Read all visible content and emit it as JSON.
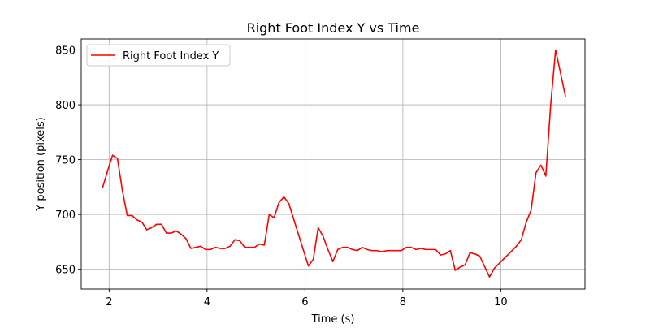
{
  "chart_data": {
    "type": "line",
    "title": "Right Foot Index Y vs Time",
    "xlabel": "Time (s)",
    "ylabel": "Y position (pixels)",
    "xlim": [
      1.43,
      11.72
    ],
    "ylim": [
      632,
      860
    ],
    "xticks": [
      2,
      4,
      6,
      8,
      10
    ],
    "yticks": [
      650,
      700,
      750,
      800,
      850
    ],
    "grid": true,
    "legend": "top-left",
    "series": [
      {
        "name": "Right Foot Index Y",
        "color": "#ff0000",
        "points": [
          [
            1.87,
            725
          ],
          [
            1.97,
            740
          ],
          [
            2.07,
            754
          ],
          [
            2.17,
            751
          ],
          [
            2.27,
            722
          ],
          [
            2.37,
            699
          ],
          [
            2.47,
            699
          ],
          [
            2.57,
            695
          ],
          [
            2.67,
            693
          ],
          [
            2.77,
            686
          ],
          [
            2.87,
            688
          ],
          [
            2.97,
            691
          ],
          [
            3.07,
            691
          ],
          [
            3.17,
            683
          ],
          [
            3.27,
            683
          ],
          [
            3.37,
            685
          ],
          [
            3.47,
            682
          ],
          [
            3.57,
            678
          ],
          [
            3.67,
            669
          ],
          [
            3.77,
            670
          ],
          [
            3.87,
            671
          ],
          [
            3.97,
            668
          ],
          [
            4.07,
            668
          ],
          [
            4.17,
            670
          ],
          [
            4.27,
            669
          ],
          [
            4.37,
            669
          ],
          [
            4.47,
            671
          ],
          [
            4.57,
            677
          ],
          [
            4.67,
            676
          ],
          [
            4.77,
            670
          ],
          [
            4.87,
            670
          ],
          [
            4.97,
            670
          ],
          [
            5.07,
            673
          ],
          [
            5.17,
            672
          ],
          [
            5.27,
            700
          ],
          [
            5.37,
            697
          ],
          [
            5.47,
            711
          ],
          [
            5.57,
            716
          ],
          [
            5.67,
            710
          ],
          [
            6.07,
            653
          ],
          [
            6.17,
            659
          ],
          [
            6.27,
            688
          ],
          [
            6.37,
            680
          ],
          [
            6.47,
            668
          ],
          [
            6.57,
            657
          ],
          [
            6.67,
            668
          ],
          [
            6.77,
            670
          ],
          [
            6.87,
            670
          ],
          [
            6.97,
            668
          ],
          [
            7.07,
            667
          ],
          [
            7.17,
            670
          ],
          [
            7.27,
            668
          ],
          [
            7.37,
            667
          ],
          [
            7.47,
            667
          ],
          [
            7.57,
            666
          ],
          [
            7.67,
            667
          ],
          [
            7.77,
            667
          ],
          [
            7.87,
            667
          ],
          [
            7.97,
            667
          ],
          [
            8.07,
            670
          ],
          [
            8.17,
            670
          ],
          [
            8.27,
            668
          ],
          [
            8.37,
            669
          ],
          [
            8.47,
            668
          ],
          [
            8.57,
            668
          ],
          [
            8.67,
            668
          ],
          [
            8.77,
            663
          ],
          [
            8.87,
            664
          ],
          [
            8.97,
            667
          ],
          [
            9.07,
            649
          ],
          [
            9.17,
            652
          ],
          [
            9.27,
            654
          ],
          [
            9.37,
            665
          ],
          [
            9.47,
            664
          ],
          [
            9.57,
            662
          ],
          [
            9.77,
            643
          ],
          [
            9.87,
            651
          ],
          [
            10.32,
            671
          ],
          [
            10.42,
            677
          ],
          [
            10.52,
            693
          ],
          [
            10.62,
            704
          ],
          [
            10.72,
            738
          ],
          [
            10.82,
            745
          ],
          [
            10.92,
            735
          ],
          [
            11.02,
            800
          ],
          [
            11.12,
            850
          ],
          [
            11.32,
            808
          ]
        ]
      }
    ]
  }
}
